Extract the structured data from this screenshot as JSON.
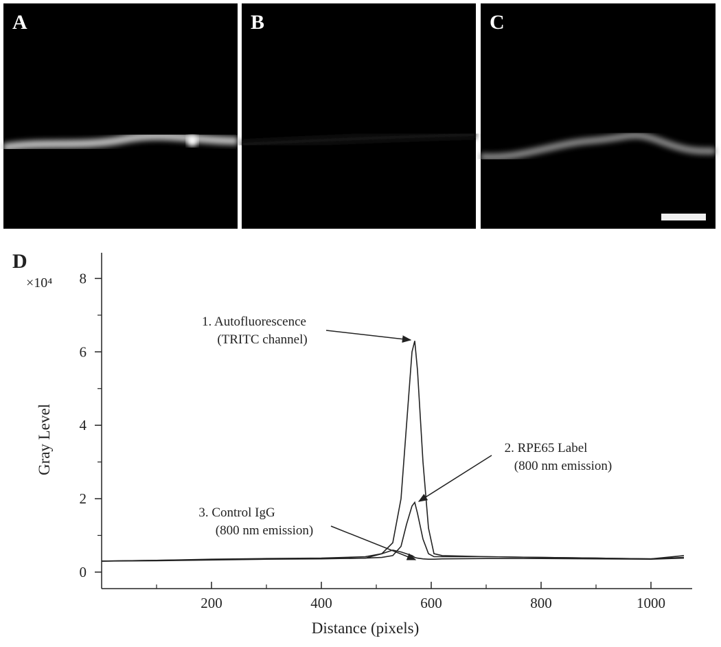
{
  "panels": [
    {
      "label": "A"
    },
    {
      "label": "B"
    },
    {
      "label": "C"
    }
  ],
  "chart_data": {
    "type": "line",
    "panel_label": "D",
    "y_multiplier": "×10⁴",
    "xlabel": "Distance (pixels)",
    "ylabel": "Gray Level",
    "xlim": [
      0,
      1075
    ],
    "ylim": [
      -0.45,
      8.7
    ],
    "xticks": [
      200,
      400,
      600,
      800,
      1000
    ],
    "xminorticks": [
      100,
      300,
      500,
      700,
      900
    ],
    "yticks": [
      0,
      2,
      4,
      6,
      8
    ],
    "yminorticks": [
      1,
      3,
      5,
      7
    ],
    "x": [
      0,
      100,
      200,
      300,
      400,
      480,
      510,
      530,
      545,
      555,
      565,
      570,
      575,
      585,
      595,
      605,
      620,
      700,
      800,
      900,
      1000,
      1060
    ],
    "series": [
      {
        "name": "1. Autofluorescence",
        "note": "(TRITC channel)",
        "color": "#222",
        "values": [
          0.3,
          0.32,
          0.35,
          0.37,
          0.38,
          0.42,
          0.5,
          0.8,
          2.0,
          4.0,
          6.0,
          6.3,
          5.5,
          3.0,
          1.2,
          0.5,
          0.45,
          0.42,
          0.4,
          0.38,
          0.36,
          0.4
        ]
      },
      {
        "name": "2. RPE65 Label",
        "note": "(800 nm emission)",
        "color": "#222",
        "values": [
          0.3,
          0.32,
          0.34,
          0.36,
          0.37,
          0.38,
          0.4,
          0.45,
          0.7,
          1.3,
          1.8,
          1.9,
          1.6,
          0.9,
          0.5,
          0.42,
          0.42,
          0.42,
          0.4,
          0.38,
          0.36,
          0.45
        ]
      },
      {
        "name": "3. Control IgG",
        "note": "(800 nm emission)",
        "color": "#222",
        "values": [
          0.3,
          0.31,
          0.33,
          0.35,
          0.36,
          0.38,
          0.5,
          0.6,
          0.55,
          0.5,
          0.45,
          0.4,
          0.38,
          0.36,
          0.35,
          0.35,
          0.36,
          0.37,
          0.37,
          0.36,
          0.35,
          0.38
        ]
      }
    ]
  }
}
